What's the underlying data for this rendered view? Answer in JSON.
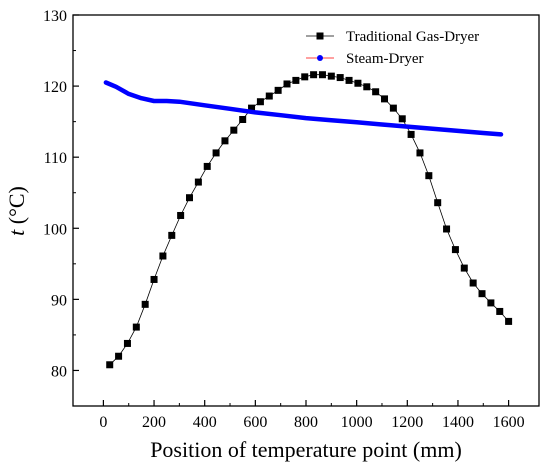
{
  "chart_data": {
    "type": "line",
    "title": "",
    "xlabel": "Position of temperature point (mm)",
    "ylabel_italic": "t",
    "ylabel_unit": " (°C)",
    "xlim": [
      -120,
      1720
    ],
    "ylim": [
      75,
      130
    ],
    "xticks": [
      0,
      200,
      400,
      600,
      800,
      1000,
      1200,
      1400,
      1600
    ],
    "yticks": [
      80,
      90,
      100,
      110,
      120,
      130
    ],
    "grid": false,
    "legend_position": "top-right",
    "series": [
      {
        "name": "Traditional Gas-Dryer",
        "color": "#000000",
        "marker": "square",
        "x": [
          25,
          60,
          95,
          130,
          165,
          200,
          235,
          270,
          305,
          340,
          375,
          410,
          445,
          480,
          515,
          550,
          585,
          620,
          655,
          690,
          725,
          760,
          795,
          830,
          865,
          900,
          935,
          970,
          1005,
          1040,
          1075,
          1110,
          1145,
          1180,
          1215,
          1250,
          1285,
          1320,
          1355,
          1390,
          1425,
          1460,
          1495,
          1530,
          1565,
          1600
        ],
        "y": [
          80.8,
          82.0,
          83.8,
          86.1,
          89.3,
          92.8,
          96.1,
          99.0,
          101.8,
          104.3,
          106.5,
          108.7,
          110.6,
          112.3,
          113.8,
          115.3,
          116.9,
          117.8,
          118.6,
          119.4,
          120.3,
          120.8,
          121.3,
          121.6,
          121.6,
          121.4,
          121.2,
          120.8,
          120.4,
          119.9,
          119.2,
          118.2,
          116.9,
          115.4,
          113.2,
          110.6,
          107.4,
          103.6,
          99.9,
          97.0,
          94.4,
          92.3,
          90.8,
          89.5,
          88.3,
          86.9
        ]
      },
      {
        "name": "Steam-Dryer",
        "color": "#0000ff",
        "marker": "circle",
        "x": [
          10,
          50,
          100,
          150,
          200,
          250,
          300,
          400,
          500,
          600,
          700,
          800,
          900,
          1000,
          1100,
          1200,
          1300,
          1400,
          1500,
          1570
        ],
        "y": [
          120.5,
          119.9,
          118.9,
          118.3,
          117.9,
          117.9,
          117.8,
          117.3,
          116.8,
          116.3,
          115.9,
          115.5,
          115.2,
          114.9,
          114.6,
          114.3,
          114.0,
          113.7,
          113.4,
          113.2
        ]
      }
    ]
  }
}
